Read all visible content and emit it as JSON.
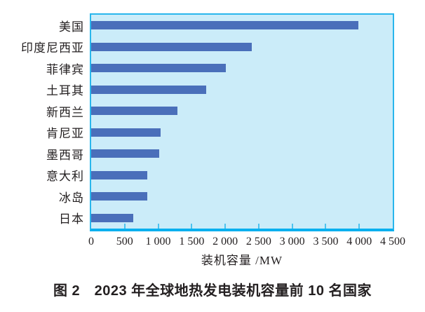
{
  "chart_data": {
    "type": "bar",
    "orientation": "horizontal",
    "title": "图 2　2023 年全球地热发电装机容量前 10 名国家",
    "xlabel": "装机容量 /MW",
    "ylabel": "",
    "xlim": [
      0,
      4500
    ],
    "grid": false,
    "legend": "none",
    "categories": [
      "美国",
      "印度尼西亚",
      "菲律宾",
      "土耳其",
      "新西兰",
      "肯尼亚",
      "墨西哥",
      "意大利",
      "冰岛",
      "日本"
    ],
    "values": [
      3990,
      2400,
      2010,
      1720,
      1290,
      1035,
      1020,
      840,
      840,
      630
    ],
    "x_ticks": [
      0,
      500,
      1000,
      1500,
      2000,
      2500,
      3000,
      3500,
      4000,
      4500
    ],
    "x_tick_labels": [
      "0",
      "500",
      "1 000",
      "1 500",
      "2 000",
      "2 500",
      "3 000",
      "3 500",
      "4 000",
      "4 500"
    ]
  },
  "colors": {
    "bar": "#4a6fba",
    "plot_bg": "#cbecf9",
    "axis": "#29b6ec",
    "axis_strong": "#0ab0ef",
    "tick": "#4cc3ef",
    "text": "#231f20"
  }
}
